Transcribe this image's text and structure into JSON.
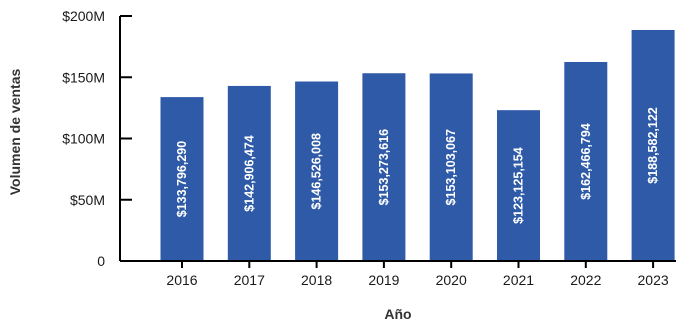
{
  "chart_data": {
    "type": "bar",
    "title": "",
    "xlabel": "Año",
    "ylabel": "Volumen de ventas",
    "categories": [
      "2016",
      "2017",
      "2018",
      "2019",
      "2020",
      "2021",
      "2022",
      "2023"
    ],
    "values": [
      133796290,
      142906474,
      146526008,
      153273616,
      153103067,
      123125154,
      162466794,
      188582122
    ],
    "value_labels": [
      "$133,796,290",
      "$142,906,474",
      "$146,526,008",
      "$153,273,616",
      "$153,103,067",
      "$123,125,154",
      "$162,466,794",
      "$188,582,122"
    ],
    "ylim": [
      0,
      200000000
    ],
    "yticks": [
      0,
      50000000,
      100000000,
      150000000,
      200000000
    ],
    "ytick_labels": [
      "0",
      "$50M",
      "$100M",
      "$150M",
      "$200M"
    ],
    "grid": false,
    "bar_color": "#2e5aa8",
    "label_color": "#ffffff"
  }
}
